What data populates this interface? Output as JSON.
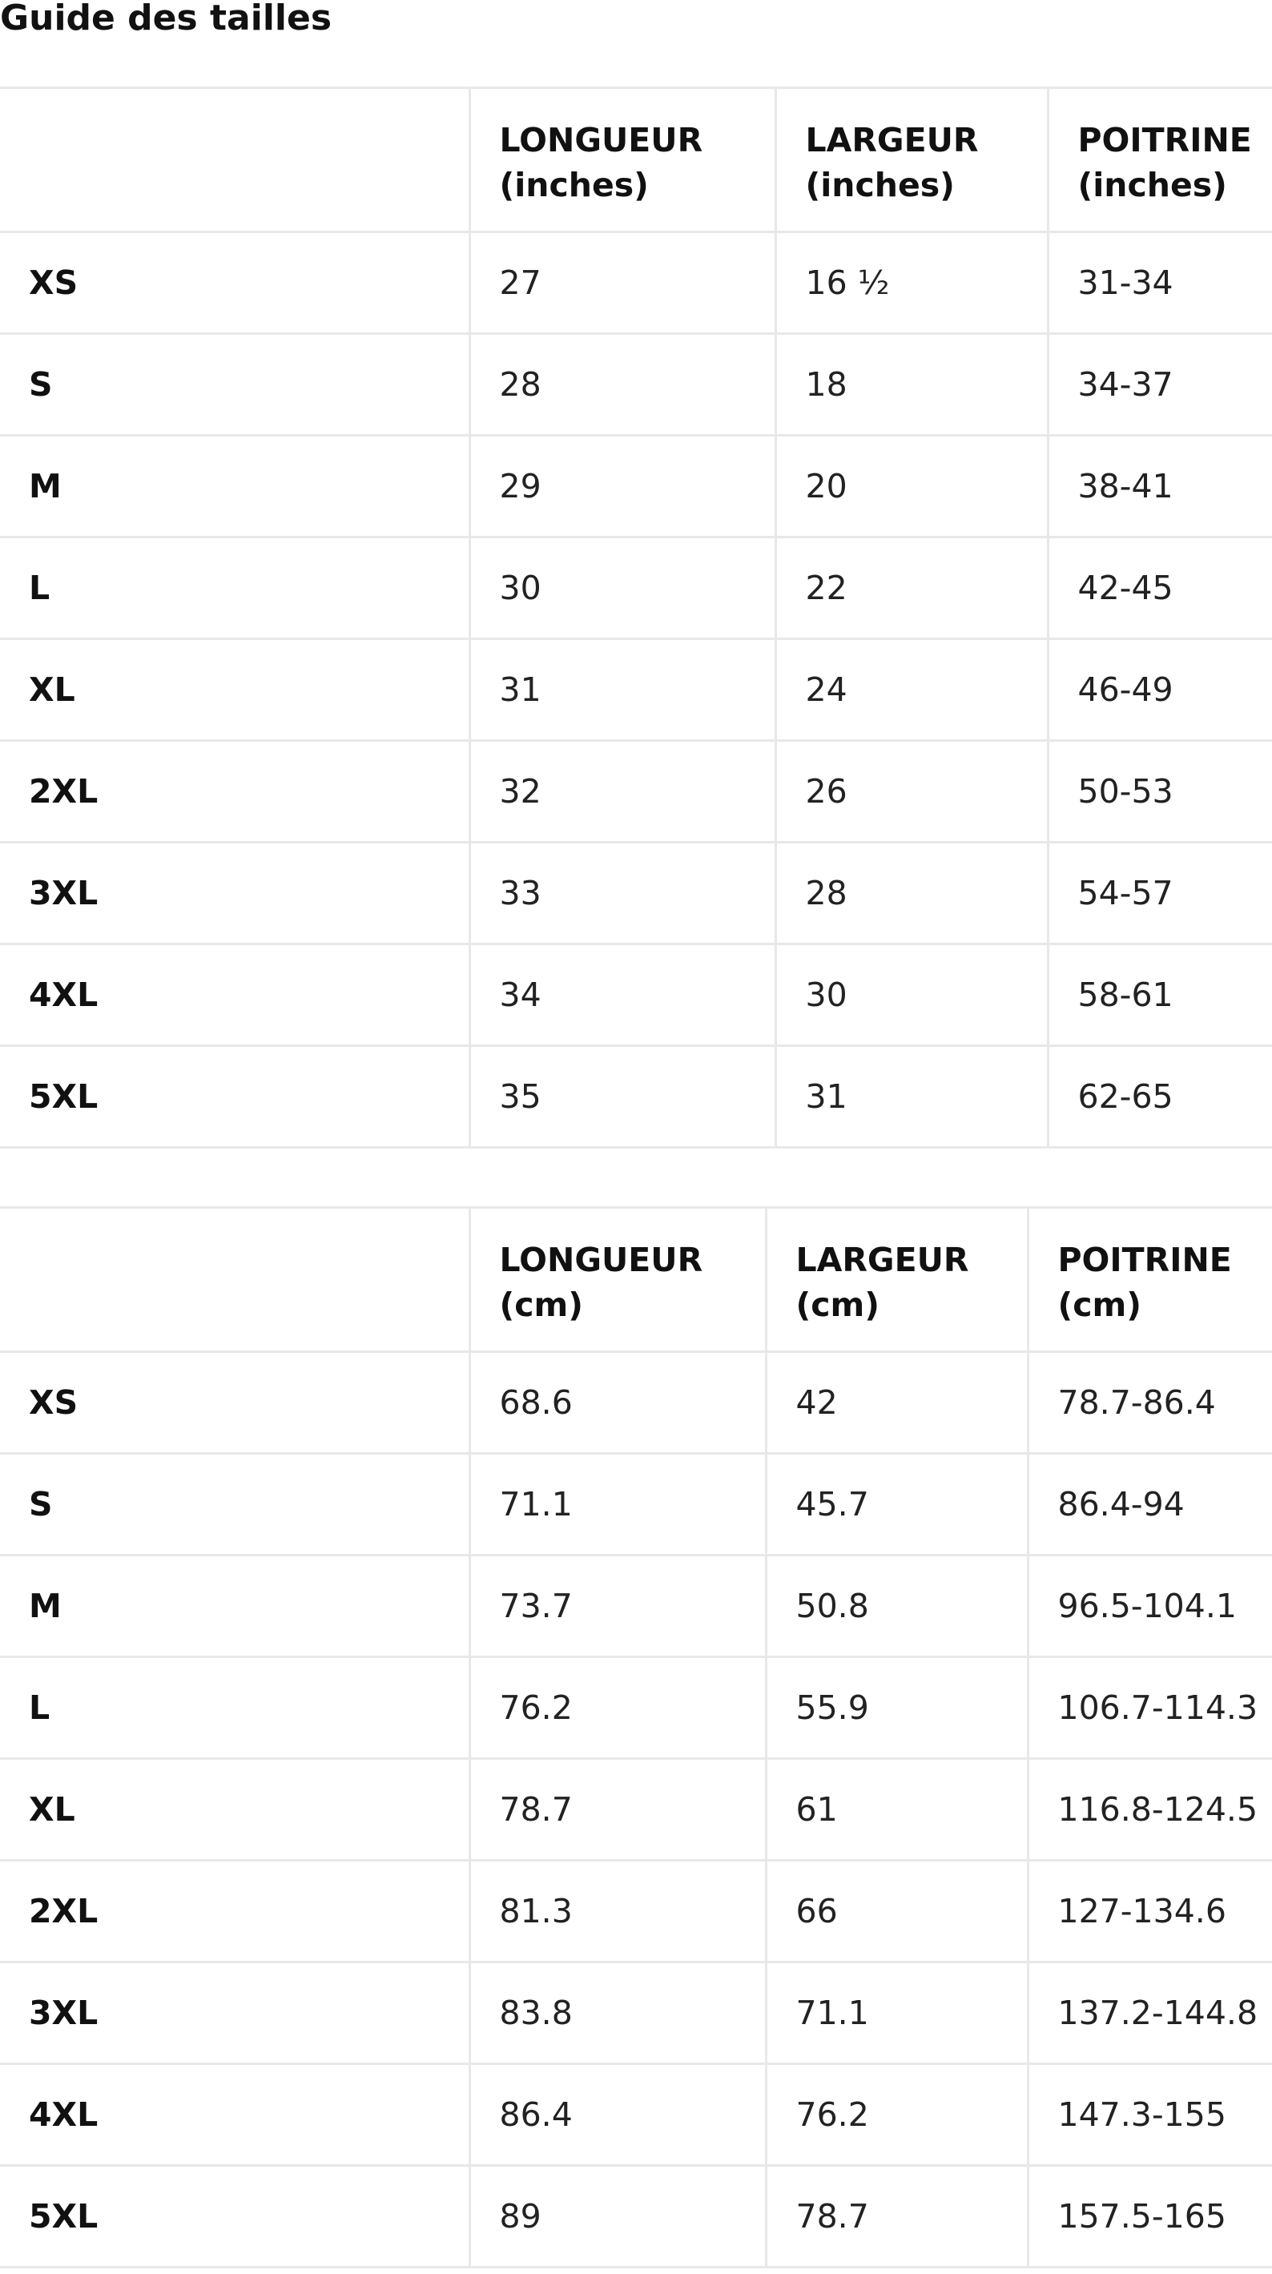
{
  "title": "Guide des tailles",
  "tables": [
    {
      "headers": [
        "",
        [
          "LONGUEUR",
          "(inches)"
        ],
        [
          "LARGEUR",
          "(inches)"
        ],
        [
          "POITRINE",
          "(inches)"
        ]
      ],
      "rows": [
        [
          "XS",
          "27",
          "16 ½",
          "31-34"
        ],
        [
          "S",
          "28",
          "18",
          "34-37"
        ],
        [
          "M",
          "29",
          "20",
          "38-41"
        ],
        [
          "L",
          "30",
          "22",
          "42-45"
        ],
        [
          "XL",
          "31",
          "24",
          "46-49"
        ],
        [
          "2XL",
          "32",
          "26",
          "50-53"
        ],
        [
          "3XL",
          "33",
          "28",
          "54-57"
        ],
        [
          "4XL",
          "34",
          "30",
          "58-61"
        ],
        [
          "5XL",
          "35",
          "31",
          "62-65"
        ]
      ]
    },
    {
      "headers": [
        "",
        [
          "LONGUEUR",
          "(cm)"
        ],
        [
          "LARGEUR",
          "(cm)"
        ],
        [
          "POITRINE",
          "(cm)"
        ]
      ],
      "rows": [
        [
          "XS",
          "68.6",
          "42",
          "78.7-86.4"
        ],
        [
          "S",
          "71.1",
          "45.7",
          "86.4-94"
        ],
        [
          "M",
          "73.7",
          "50.8",
          "96.5-104.1"
        ],
        [
          "L",
          "76.2",
          "55.9",
          "106.7-114.3"
        ],
        [
          "XL",
          "78.7",
          "61",
          "116.8-124.5"
        ],
        [
          "2XL",
          "81.3",
          "66",
          "127-134.6"
        ],
        [
          "3XL",
          "83.8",
          "71.1",
          "137.2-144.8"
        ],
        [
          "4XL",
          "86.4",
          "76.2",
          "147.3-155"
        ],
        [
          "5XL",
          "89",
          "78.7",
          "157.5-165"
        ]
      ]
    }
  ]
}
